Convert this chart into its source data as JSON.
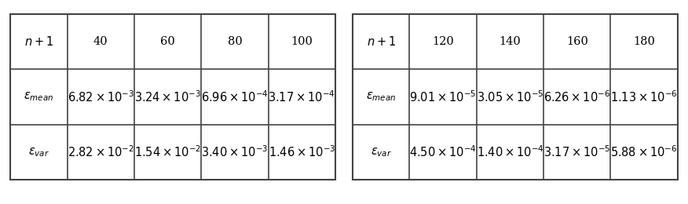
{
  "table1": {
    "col_headers": [
      "$n+1$",
      "40",
      "60",
      "80",
      "100"
    ],
    "row_labels": [
      "$\\varepsilon_{mean}$",
      "$\\varepsilon_{var}$"
    ],
    "values": [
      [
        "$6.82\\times10^{-3}$",
        "$3.24\\times10^{-3}$",
        "$6.96\\times10^{-4}$",
        "$3.17\\times10^{-4}$"
      ],
      [
        "$2.82\\times10^{-2}$",
        "$1.54\\times10^{-2}$",
        "$3.40\\times10^{-3}$",
        "$1.46\\times10^{-3}$"
      ]
    ]
  },
  "table2": {
    "col_headers": [
      "$n+1$",
      "120",
      "140",
      "160",
      "180"
    ],
    "row_labels": [
      "$\\varepsilon_{mean}$",
      "$\\varepsilon_{var}$"
    ],
    "values": [
      [
        "$9.01\\times10^{-5}$",
        "$3.05\\times10^{-5}$",
        "$6.26\\times10^{-6}$",
        "$1.13\\times10^{-6}$"
      ],
      [
        "$4.50\\times10^{-4}$",
        "$1.40\\times10^{-4}$",
        "$3.17\\times10^{-5}$",
        "$5.88\\times10^{-6}$"
      ]
    ]
  },
  "font_size": 10.5,
  "line_color": "#444444",
  "background_color": "#ffffff",
  "fig_width": 8.76,
  "fig_height": 2.6
}
